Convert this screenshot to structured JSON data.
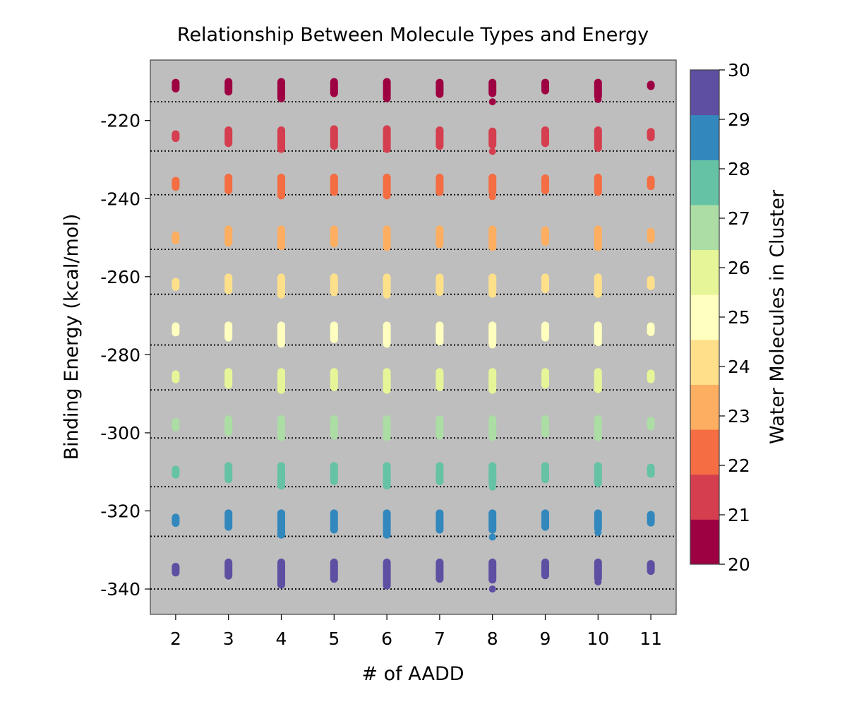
{
  "chart_data": {
    "type": "scatter",
    "title": "Relationship Between Molecule Types and Energy",
    "xlabel": "# of AADD",
    "ylabel": "Binding Energy (kcal/mol)",
    "xlim": [
      1.52,
      11.48
    ],
    "ylim": [
      -346.5,
      -204.5
    ],
    "x_ticks": [
      2,
      3,
      4,
      5,
      6,
      7,
      8,
      9,
      10,
      11
    ],
    "y_ticks": [
      -340,
      -320,
      -300,
      -280,
      -260,
      -240,
      -220
    ],
    "background_color": "#bebebe",
    "grid": false,
    "reference_lines": [
      -215.2,
      -227.8,
      -239.0,
      -253.0,
      -264.5,
      -277.5,
      -289.0,
      -301.3,
      -313.8,
      -326.5,
      -340.0
    ],
    "colorbar": {
      "label": "Water Molecules in Cluster",
      "min": 20,
      "max": 30,
      "ticks": [
        20,
        21,
        22,
        23,
        24,
        25,
        26,
        27,
        28,
        29,
        30
      ],
      "bins": [
        {
          "water": 20,
          "color": "#9e0142"
        },
        {
          "water": 21,
          "color": "#d53e4f"
        },
        {
          "water": 22,
          "color": "#f46d43"
        },
        {
          "water": 23,
          "color": "#fdae61"
        },
        {
          "water": 24,
          "color": "#fee08b"
        },
        {
          "water": 25,
          "color": "#ffffbf"
        },
        {
          "water": 26,
          "color": "#e6f598"
        },
        {
          "water": 27,
          "color": "#abdda4"
        },
        {
          "water": 28,
          "color": "#66c2a5"
        },
        {
          "water": 29,
          "color": "#3288bd"
        },
        {
          "water": 30,
          "color": "#5e4fa2"
        }
      ]
    },
    "series": [
      {
        "water": 20,
        "ranges": [
          [
            2,
            -210.3,
            -211.8
          ],
          [
            3,
            -210.1,
            -212.6
          ],
          [
            4,
            -210.1,
            -214.3
          ],
          [
            5,
            -210.1,
            -213.0
          ],
          [
            6,
            -210.1,
            -214.3
          ],
          [
            7,
            -210.3,
            -213.2
          ],
          [
            8,
            -210.3,
            -213.0
          ],
          [
            9,
            -210.3,
            -212.3
          ],
          [
            10,
            -210.3,
            -213.8
          ],
          [
            11,
            -210.8,
            -211.2
          ]
        ],
        "outliers": [
          [
            8,
            -215.2
          ],
          [
            10,
            -214.6
          ]
        ]
      },
      {
        "water": 21,
        "ranges": [
          [
            2,
            -223.5,
            -224.5
          ],
          [
            3,
            -222.5,
            -225.8
          ],
          [
            4,
            -222.5,
            -227.3
          ],
          [
            5,
            -222.2,
            -226.5
          ],
          [
            6,
            -222.2,
            -227.3
          ],
          [
            7,
            -222.5,
            -226.5
          ],
          [
            8,
            -222.8,
            -226.2
          ],
          [
            9,
            -222.5,
            -225.8
          ],
          [
            10,
            -222.5,
            -227.0
          ],
          [
            11,
            -222.9,
            -224.3
          ]
        ],
        "outliers": [
          [
            8,
            -227.9
          ]
        ]
      },
      {
        "water": 22,
        "ranges": [
          [
            2,
            -235.4,
            -237.0
          ],
          [
            3,
            -234.6,
            -237.9
          ],
          [
            4,
            -234.6,
            -239.2
          ],
          [
            5,
            -234.6,
            -238.3
          ],
          [
            6,
            -234.6,
            -239.2
          ],
          [
            7,
            -234.6,
            -238.3
          ],
          [
            8,
            -234.6,
            -238.3
          ],
          [
            9,
            -234.8,
            -237.9
          ],
          [
            10,
            -234.6,
            -238.3
          ],
          [
            11,
            -235.1,
            -236.8
          ]
        ],
        "outliers": [
          [
            8,
            -239.5
          ]
        ]
      },
      {
        "water": 23,
        "ranges": [
          [
            2,
            -249.4,
            -250.7
          ],
          [
            3,
            -247.9,
            -251.3
          ],
          [
            4,
            -247.9,
            -252.2
          ],
          [
            5,
            -247.9,
            -251.5
          ],
          [
            6,
            -247.9,
            -252.4
          ],
          [
            7,
            -247.9,
            -251.7
          ],
          [
            8,
            -247.9,
            -252.4
          ],
          [
            9,
            -248.1,
            -251.1
          ],
          [
            10,
            -247.9,
            -252.4
          ],
          [
            11,
            -248.5,
            -250.4
          ]
        ],
        "outliers": []
      },
      {
        "water": 24,
        "ranges": [
          [
            2,
            -261.3,
            -262.6
          ],
          [
            3,
            -260.2,
            -263.5
          ],
          [
            4,
            -260.2,
            -264.6
          ],
          [
            5,
            -260.2,
            -264.0
          ],
          [
            6,
            -260.2,
            -264.6
          ],
          [
            7,
            -260.2,
            -263.9
          ],
          [
            8,
            -260.2,
            -264.4
          ],
          [
            9,
            -260.2,
            -263.2
          ],
          [
            10,
            -260.2,
            -264.4
          ],
          [
            11,
            -260.8,
            -262.4
          ]
        ],
        "outliers": []
      },
      {
        "water": 25,
        "ranges": [
          [
            2,
            -272.7,
            -274.3
          ],
          [
            3,
            -272.5,
            -275.6
          ],
          [
            4,
            -272.5,
            -277.2
          ],
          [
            5,
            -272.5,
            -276.0
          ],
          [
            6,
            -272.5,
            -277.2
          ],
          [
            7,
            -272.5,
            -276.6
          ],
          [
            8,
            -272.5,
            -277.0
          ],
          [
            9,
            -272.5,
            -275.6
          ],
          [
            10,
            -272.5,
            -276.8
          ],
          [
            11,
            -272.7,
            -274.2
          ]
        ],
        "outliers": [
          [
            8,
            -277.5
          ]
        ]
      },
      {
        "water": 26,
        "ranges": [
          [
            2,
            -285.0,
            -286.3
          ],
          [
            3,
            -284.4,
            -287.7
          ],
          [
            4,
            -284.4,
            -289.0
          ],
          [
            5,
            -284.4,
            -288.3
          ],
          [
            6,
            -284.4,
            -289.0
          ],
          [
            7,
            -284.4,
            -288.3
          ],
          [
            8,
            -284.4,
            -289.0
          ],
          [
            9,
            -284.4,
            -287.7
          ],
          [
            10,
            -284.4,
            -288.8
          ],
          [
            11,
            -284.8,
            -286.3
          ]
        ],
        "outliers": []
      },
      {
        "water": 27,
        "ranges": [
          [
            2,
            -297.2,
            -298.6
          ],
          [
            3,
            -296.5,
            -299.8
          ],
          [
            4,
            -296.5,
            -301.1
          ],
          [
            5,
            -296.5,
            -300.7
          ],
          [
            6,
            -296.5,
            -301.1
          ],
          [
            7,
            -296.5,
            -300.7
          ],
          [
            8,
            -296.5,
            -301.1
          ],
          [
            9,
            -296.5,
            -300.2
          ],
          [
            10,
            -296.5,
            -301.1
          ],
          [
            11,
            -296.9,
            -298.4
          ]
        ],
        "outliers": []
      },
      {
        "water": 28,
        "ranges": [
          [
            2,
            -309.4,
            -310.7
          ],
          [
            3,
            -308.5,
            -311.9
          ],
          [
            4,
            -308.5,
            -313.5
          ],
          [
            5,
            -308.5,
            -312.4
          ],
          [
            6,
            -308.5,
            -313.5
          ],
          [
            7,
            -308.5,
            -312.4
          ],
          [
            8,
            -308.5,
            -313.0
          ],
          [
            9,
            -308.5,
            -311.9
          ],
          [
            10,
            -308.5,
            -312.9
          ],
          [
            11,
            -308.9,
            -310.5
          ]
        ],
        "outliers": [
          [
            8,
            -313.9
          ]
        ]
      },
      {
        "water": 29,
        "ranges": [
          [
            2,
            -321.7,
            -323.1
          ],
          [
            3,
            -320.6,
            -324.1
          ],
          [
            4,
            -320.6,
            -326.1
          ],
          [
            5,
            -320.6,
            -324.8
          ],
          [
            6,
            -320.6,
            -326.1
          ],
          [
            7,
            -320.6,
            -324.8
          ],
          [
            8,
            -320.6,
            -324.8
          ],
          [
            9,
            -320.6,
            -324.1
          ],
          [
            10,
            -320.6,
            -324.5
          ],
          [
            11,
            -321.0,
            -323.0
          ]
        ],
        "outliers": [
          [
            8,
            -326.7
          ],
          [
            10,
            -325.5
          ]
        ]
      },
      {
        "water": 30,
        "ranges": [
          [
            2,
            -334.3,
            -335.8
          ],
          [
            3,
            -333.2,
            -336.6
          ],
          [
            4,
            -333.2,
            -338.9
          ],
          [
            5,
            -333.2,
            -337.4
          ],
          [
            6,
            -333.2,
            -339.1
          ],
          [
            7,
            -333.2,
            -337.4
          ],
          [
            8,
            -333.2,
            -337.6
          ],
          [
            9,
            -333.2,
            -336.5
          ],
          [
            10,
            -333.2,
            -337.3
          ],
          [
            11,
            -333.6,
            -335.4
          ]
        ],
        "outliers": [
          [
            8,
            -340.0
          ],
          [
            10,
            -338.2
          ]
        ]
      }
    ]
  }
}
